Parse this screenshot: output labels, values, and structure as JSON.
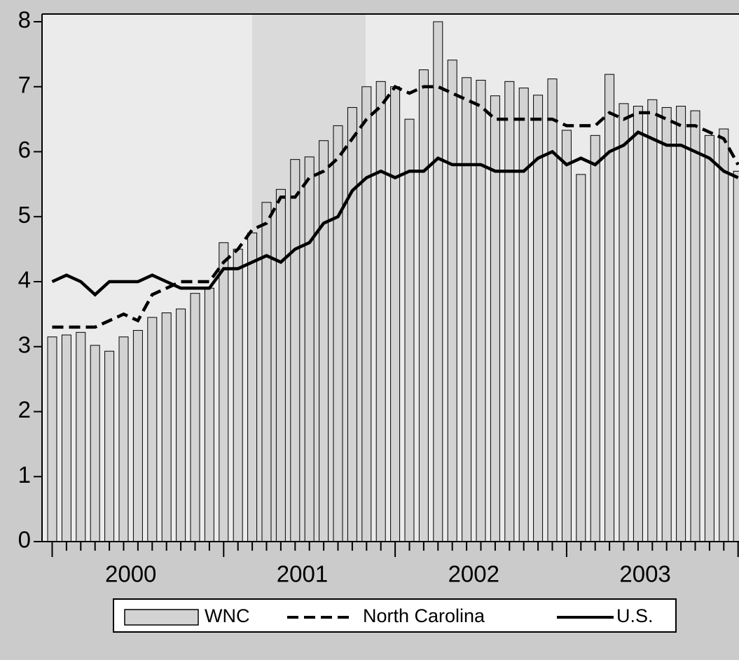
{
  "chart_data": {
    "type": "bar_line",
    "year_labels": [
      "2000",
      "2001",
      "2002",
      "2003"
    ],
    "ylim": [
      0,
      8
    ],
    "yticks": [
      0,
      1,
      2,
      3,
      4,
      5,
      6,
      7,
      8
    ],
    "series": [
      {
        "name": "WNC",
        "kind": "bar",
        "color": "#d3d3d3",
        "values": [
          3.15,
          3.18,
          3.22,
          3.02,
          2.93,
          3.15,
          3.25,
          3.45,
          3.52,
          3.58,
          3.82,
          3.9,
          4.6,
          4.5,
          4.75,
          5.22,
          5.42,
          5.88,
          5.92,
          6.17,
          6.4,
          6.68,
          7.0,
          7.08,
          7.0,
          6.5,
          7.26,
          8.0,
          7.41,
          7.14,
          7.1,
          6.86,
          7.08,
          6.98,
          6.87,
          7.12,
          6.33,
          5.65,
          6.25,
          7.19,
          6.74,
          6.7,
          6.8,
          6.68,
          6.7,
          6.63,
          6.25,
          6.35,
          5.7
        ]
      },
      {
        "name": "North Carolina",
        "kind": "line",
        "dash": true,
        "color": "#000000",
        "values": [
          3.3,
          3.3,
          3.3,
          3.3,
          3.4,
          3.5,
          3.4,
          3.8,
          3.9,
          4.0,
          4.0,
          4.0,
          4.3,
          4.5,
          4.8,
          4.9,
          5.3,
          5.3,
          5.6,
          5.7,
          5.9,
          6.2,
          6.5,
          6.7,
          7.0,
          6.9,
          7.0,
          7.0,
          6.9,
          6.8,
          6.7,
          6.5,
          6.5,
          6.5,
          6.5,
          6.5,
          6.4,
          6.4,
          6.4,
          6.6,
          6.5,
          6.6,
          6.6,
          6.5,
          6.4,
          6.4,
          6.3,
          6.2,
          5.8
        ]
      },
      {
        "name": "U.S.",
        "kind": "line",
        "dash": false,
        "color": "#000000",
        "values": [
          4.0,
          4.1,
          4.0,
          3.8,
          4.0,
          4.0,
          4.0,
          4.1,
          4.0,
          3.9,
          3.9,
          3.9,
          4.2,
          4.2,
          4.3,
          4.4,
          4.3,
          4.5,
          4.6,
          4.9,
          5.0,
          5.4,
          5.6,
          5.7,
          5.6,
          5.7,
          5.7,
          5.9,
          5.8,
          5.8,
          5.8,
          5.7,
          5.7,
          5.7,
          5.9,
          6.0,
          5.8,
          5.9,
          5.8,
          6.0,
          6.1,
          6.3,
          6.2,
          6.1,
          6.1,
          6.0,
          5.9,
          5.7,
          5.6
        ]
      }
    ]
  }
}
